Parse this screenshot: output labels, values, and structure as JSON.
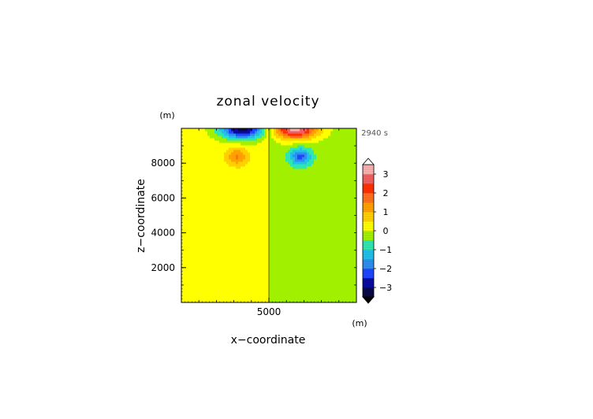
{
  "chart_data": {
    "type": "heatmap",
    "title": "zonal velocity",
    "xlabel": "x−coordinate",
    "ylabel": "z−coordinate",
    "x_unit": "(m)",
    "y_unit": "(m)",
    "time_label": "2940 s",
    "xlim": [
      0,
      10000
    ],
    "ylim": [
      0,
      10000
    ],
    "x_ticks": [
      {
        "value": 5000,
        "label": "5000"
      }
    ],
    "y_ticks": [
      {
        "value": 2000,
        "label": "2000"
      },
      {
        "value": 4000,
        "label": "4000"
      },
      {
        "value": 6000,
        "label": "6000"
      },
      {
        "value": 8000,
        "label": "8000"
      }
    ],
    "background_fields": [
      {
        "x_range": [
          0,
          5000
        ],
        "value": 0.25,
        "color": "#ffff00"
      },
      {
        "x_range": [
          5000,
          10000
        ],
        "value": -0.25,
        "color": "#a0f000"
      }
    ],
    "features": [
      {
        "x": 3500,
        "z": 10000,
        "peak": -3.5,
        "sx": 1300,
        "sz": 600
      },
      {
        "x": 6500,
        "z": 10000,
        "peak": 3.5,
        "sx": 1300,
        "sz": 600
      },
      {
        "x": 3200,
        "z": 8400,
        "peak": 1.3,
        "sx": 600,
        "sz": 500
      },
      {
        "x": 6800,
        "z": 8400,
        "peak": -1.9,
        "sx": 600,
        "sz": 500
      }
    ],
    "colorbar": {
      "min": -3.5,
      "max": 3.5,
      "step": 0.5,
      "ticks": [
        {
          "value": 3,
          "label": "3"
        },
        {
          "value": 2,
          "label": "2"
        },
        {
          "value": 1,
          "label": "1"
        },
        {
          "value": 0,
          "label": "0"
        },
        {
          "value": -1,
          "label": "−1"
        },
        {
          "value": -2,
          "label": "−2"
        },
        {
          "value": -3,
          "label": "−3"
        }
      ],
      "colors": [
        "#080848",
        "#0a0aa0",
        "#1e46ff",
        "#2e8ef0",
        "#20c0e8",
        "#30e6b0",
        "#a0f000",
        "#ffff00",
        "#ffd000",
        "#ffa000",
        "#ff7020",
        "#ff3000",
        "#f06060",
        "#f8b0b0"
      ],
      "over_color": "#ffffff",
      "under_color": "#000000"
    }
  }
}
